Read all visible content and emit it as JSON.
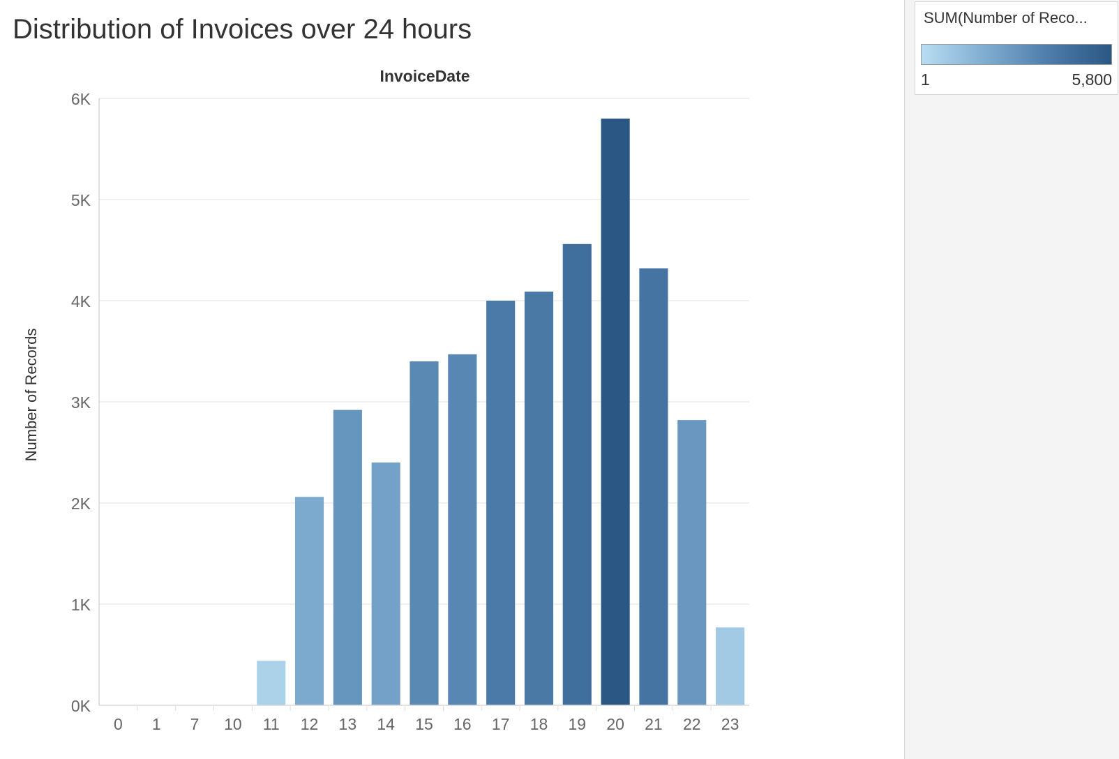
{
  "title": "Distribution of Invoices over 24 hours",
  "legend": {
    "title": "SUM(Number of Reco...",
    "min_label": "1",
    "max_label": "5,800",
    "min_value": 1,
    "max_value": 5800,
    "color_low": "#b9ddf1",
    "color_high": "#2a5783"
  },
  "chart_data": {
    "type": "bar",
    "title": "",
    "header_label": "InvoiceDate",
    "xlabel": "",
    "ylabel": "Number of Records",
    "categories": [
      "0",
      "1",
      "7",
      "10",
      "11",
      "12",
      "13",
      "14",
      "15",
      "16",
      "17",
      "18",
      "19",
      "20",
      "21",
      "22",
      "23"
    ],
    "values": [
      1,
      1,
      1,
      1,
      440,
      2060,
      2920,
      2400,
      3400,
      3470,
      4000,
      4090,
      4560,
      5800,
      4320,
      2820,
      770
    ],
    "ylim": [
      0,
      6000
    ],
    "yticks": [
      0,
      1000,
      2000,
      3000,
      4000,
      5000,
      6000
    ],
    "ytick_labels": [
      "0K",
      "1K",
      "2K",
      "3K",
      "4K",
      "5K",
      "6K"
    ],
    "grid": true,
    "legend_placement": "top-right"
  }
}
